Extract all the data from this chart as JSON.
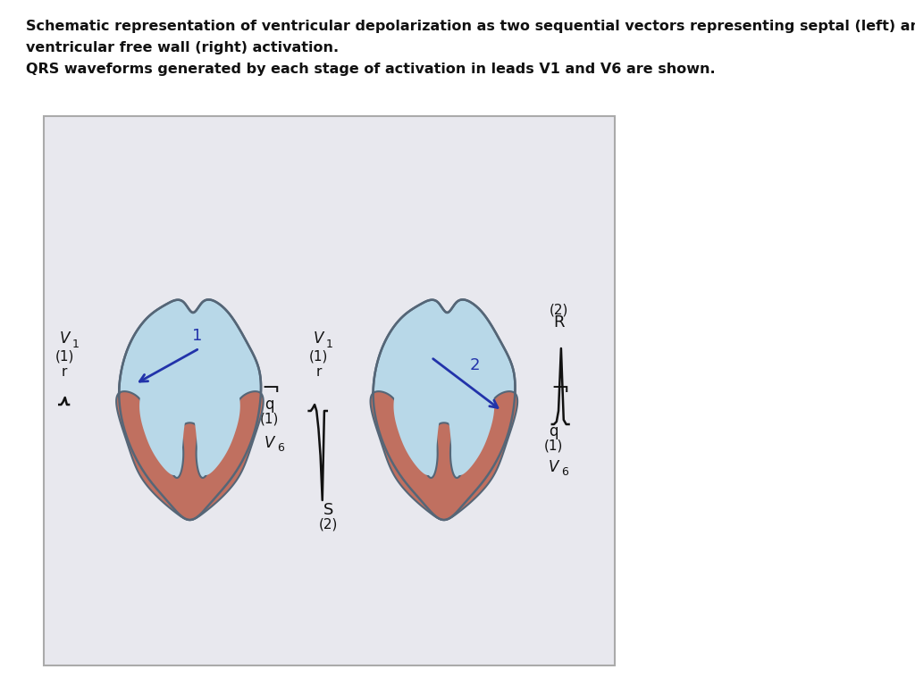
{
  "title_line1": "Schematic representation of ventricular depolarization as two sequential vectors representing septal (left) and left",
  "title_line2": "ventricular free wall (right) activation.",
  "title_line3": "QRS waveforms generated by each stage of activation in leads V1 and V6 are shown.",
  "bg_color": "#e8e8ee",
  "heart_fill_light": "#b8d8e8",
  "heart_fill_dark": "#c07060",
  "heart_outline": "#556677",
  "arrow_color": "#2233aa",
  "waveform_color": "#111111",
  "box_bg": "#e8e8ee",
  "text_color": "#111111"
}
